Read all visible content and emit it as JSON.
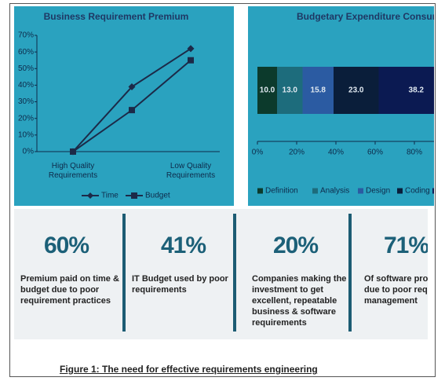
{
  "chart_data": [
    {
      "type": "line",
      "title": "Business Requirement Premium",
      "categories": [
        "High Quality Requirements",
        null,
        "Low Quality Requirements"
      ],
      "series": [
        {
          "name": "Time",
          "color": "#1c2a48",
          "marker": "diamond",
          "values": [
            0,
            39,
            62
          ]
        },
        {
          "name": "Budget",
          "color": "#1c2a48",
          "marker": "square",
          "values": [
            0,
            25,
            55
          ]
        }
      ],
      "ylim": [
        0,
        70
      ],
      "yticks": [
        {
          "value": 0,
          "label": "0%"
        },
        {
          "value": 10,
          "label": "10%"
        },
        {
          "value": 20,
          "label": "20%"
        },
        {
          "value": 30,
          "label": "30%"
        },
        {
          "value": 40,
          "label": "40%"
        },
        {
          "value": 50,
          "label": "50%"
        },
        {
          "value": 60,
          "label": "60%"
        },
        {
          "value": 70,
          "label": "70%"
        }
      ]
    },
    {
      "type": "stacked-bar-horizontal",
      "title": "Budgetary Expenditure Consump",
      "series": [
        {
          "name": "Definition",
          "color": "#0c3a2c",
          "values": [
            10.0
          ],
          "value_labels": [
            "10.0"
          ]
        },
        {
          "name": "Analysis",
          "color": "#1d6c7c",
          "values": [
            13.0
          ],
          "value_labels": [
            "13.0"
          ]
        },
        {
          "name": "Design",
          "color": "#2b5ba2",
          "values": [
            15.8
          ],
          "value_labels": [
            "15.8"
          ]
        },
        {
          "name": "Coding",
          "color": "#0a1e3a",
          "values": [
            23.0
          ],
          "value_labels": [
            "23.0"
          ]
        },
        {
          "name": null,
          "color": "#0b1a52",
          "values": [
            38.2
          ],
          "value_labels": [
            "38.2"
          ]
        }
      ],
      "xlim": [
        0,
        100
      ],
      "xticks": [
        {
          "value": 0,
          "label": "0%"
        },
        {
          "value": 20,
          "label": "20%"
        },
        {
          "value": 40,
          "label": "40%"
        },
        {
          "value": 60,
          "label": "60%"
        },
        {
          "value": 80,
          "label": "80%"
        }
      ]
    }
  ],
  "stats": [
    {
      "figure": "60%",
      "lines": [
        "Premium paid on time &",
        "budget due to poor",
        "requirement practices"
      ]
    },
    {
      "figure": "41%",
      "lines": [
        "IT Budget used by poor",
        "requirements"
      ]
    },
    {
      "figure": "20%",
      "lines": [
        "Companies making the",
        "investment to get",
        "excellent, repeatable",
        "business & software",
        "requirements"
      ]
    },
    {
      "figure": "71%",
      "lines": [
        "Of software proje",
        "due to poor requ",
        "management"
      ]
    }
  ],
  "caption": "Figure 1: The need for effective requirements engineering"
}
